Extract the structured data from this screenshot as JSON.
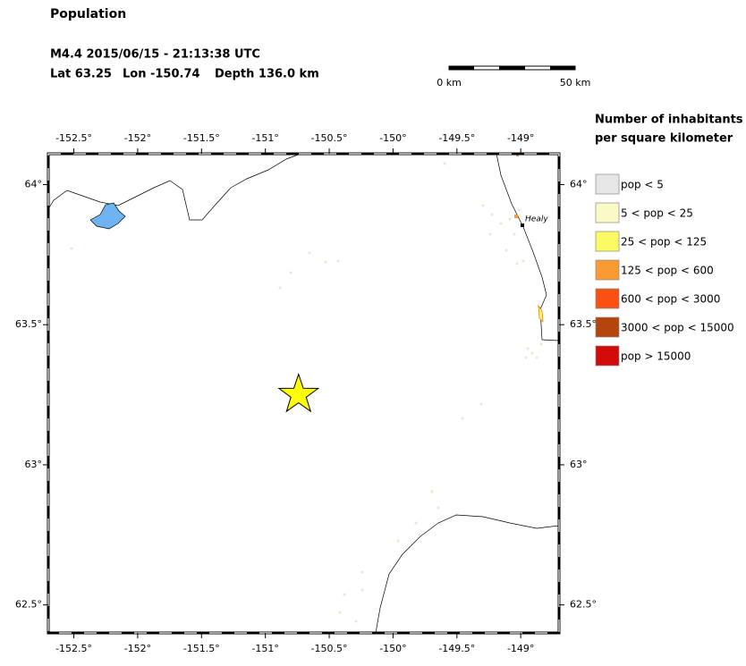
{
  "header": {
    "title": "Population",
    "event": "M4.4  2015/06/15 - 21:13:38 UTC",
    "lat": "Lat 63.25",
    "lon": "Lon -150.74",
    "depth": "Depth 136.0 km"
  },
  "scale_bar": {
    "start": "0 km",
    "end": "50 km"
  },
  "map": {
    "xlim": [
      -152.7,
      -148.7
    ],
    "ylim": [
      62.4,
      64.11
    ],
    "lon_ticks": [
      {
        "value": -152.5,
        "label": "-152.5°"
      },
      {
        "value": -152,
        "label": "-152°"
      },
      {
        "value": -151.5,
        "label": "-151.5°"
      },
      {
        "value": -151,
        "label": "-151°"
      },
      {
        "value": -150.5,
        "label": "-150.5°"
      },
      {
        "value": -150,
        "label": "-150°"
      },
      {
        "value": -149.5,
        "label": "-149.5°"
      },
      {
        "value": -149,
        "label": "-149°"
      }
    ],
    "lat_ticks": [
      {
        "value": 64,
        "label": "64°"
      },
      {
        "value": 63.5,
        "label": "63.5°"
      },
      {
        "value": 63,
        "label": "63°"
      },
      {
        "value": 62.5,
        "label": "62.5°"
      }
    ],
    "epicenter": {
      "lon": -150.74,
      "lat": 63.25
    },
    "town": "Healy"
  },
  "legend": {
    "title": [
      "Number of inhabitants",
      "per square kilometer"
    ],
    "items": [
      {
        "label": "pop < 5",
        "color": "#e6e6e6"
      },
      {
        "label": "5 < pop < 25",
        "color": "#fafac8"
      },
      {
        "label": "25 < pop < 125",
        "color": "#fafa64"
      },
      {
        "label": "125 < pop < 600",
        "color": "#fa9a32"
      },
      {
        "label": "600 < pop < 3000",
        "color": "#fa5014"
      },
      {
        "label": "3000 < pop < 15000",
        "color": "#b4460c"
      },
      {
        "label": "pop > 15000",
        "color": "#d20a0a"
      }
    ]
  }
}
